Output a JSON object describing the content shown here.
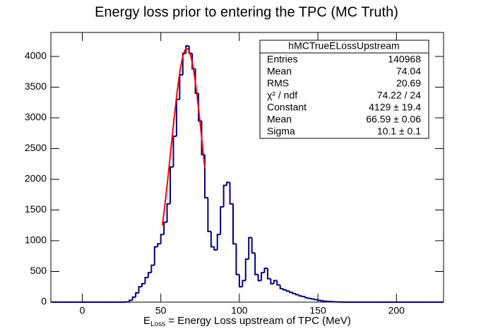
{
  "chart_data": {
    "type": "histogram",
    "title": "Energy loss prior to entering the TPC (MC Truth)",
    "xlabel": "E",
    "xlabel_sub": "Loss",
    "xlabel_rest": " = Energy Loss upstream of TPC (MeV)",
    "color": "#000080",
    "xlim": [
      -20,
      230
    ],
    "xticks": [
      0,
      50,
      100,
      150,
      200
    ],
    "ylim": [
      0,
      4390
    ],
    "yticks": [
      0,
      500,
      1000,
      1500,
      2000,
      2500,
      3000,
      3500,
      4000
    ],
    "bins": [
      -20,
      -18,
      -16,
      -14,
      -12,
      -10,
      -8,
      -6,
      -4,
      -2,
      0,
      2,
      4,
      6,
      8,
      10,
      12,
      14,
      16,
      18,
      20,
      22,
      24,
      26,
      28,
      30,
      32,
      34,
      36,
      38,
      40,
      42,
      44,
      46,
      48,
      50,
      52,
      54,
      56,
      58,
      60,
      62,
      64,
      66,
      68,
      70,
      72,
      74,
      76,
      78,
      80,
      82,
      84,
      86,
      88,
      90,
      92,
      94,
      96,
      98,
      100,
      102,
      104,
      106,
      108,
      110,
      112,
      114,
      116,
      118,
      120,
      122,
      124,
      126,
      128,
      130,
      132,
      134,
      136,
      138,
      140,
      142,
      144,
      146,
      148,
      150,
      152,
      154,
      156,
      158,
      160,
      162,
      164,
      166,
      168,
      170,
      172,
      174,
      176,
      178,
      180,
      182,
      184,
      186,
      188,
      190,
      192,
      194,
      196,
      198,
      200,
      202,
      204,
      206,
      208,
      210,
      212,
      214,
      216,
      218,
      220,
      222,
      224,
      226,
      228,
      230
    ],
    "values": [
      0,
      0,
      0,
      0,
      0,
      0,
      0,
      0,
      0,
      0,
      0,
      0,
      0,
      0,
      0,
      0,
      0,
      0,
      0,
      0,
      0,
      0,
      0,
      0,
      5,
      30,
      80,
      150,
      250,
      300,
      400,
      480,
      600,
      900,
      950,
      1100,
      1300,
      1600,
      2200,
      2700,
      3300,
      3700,
      4050,
      4170,
      4050,
      3800,
      3400,
      2950,
      2400,
      1700,
      1150,
      900,
      850,
      1100,
      1550,
      1900,
      1950,
      1600,
      950,
      450,
      250,
      350,
      700,
      1050,
      800,
      450,
      350,
      480,
      550,
      380,
      300,
      350,
      280,
      220,
      200,
      180,
      160,
      140,
      120,
      100,
      90,
      70,
      60,
      50,
      40,
      30,
      20,
      15,
      10,
      8,
      5,
      3,
      2,
      1,
      0,
      0,
      0,
      0,
      0,
      0,
      0,
      0,
      0,
      0,
      0,
      0,
      0,
      0,
      0,
      0,
      0,
      0,
      0,
      0,
      0,
      0,
      0,
      0,
      0,
      0,
      0,
      0,
      0,
      0,
      0
    ],
    "fit": {
      "color": "#ff0000",
      "constant": 4129,
      "mean": 66.59,
      "sigma": 10.1,
      "range": [
        51,
        78
      ]
    },
    "stats": {
      "title": "hMCTrueELossUpstream",
      "rows": [
        [
          "Entries",
          "140968"
        ],
        [
          "Mean",
          "74.04"
        ],
        [
          "RMS",
          "20.69"
        ],
        [
          "χ² / ndf",
          "74.22 / 24"
        ],
        [
          "Constant",
          "4129 ± 19.4"
        ],
        [
          "Mean",
          "66.59 ± 0.06"
        ],
        [
          "Sigma",
          "10.1 ± 0.1"
        ]
      ]
    }
  }
}
